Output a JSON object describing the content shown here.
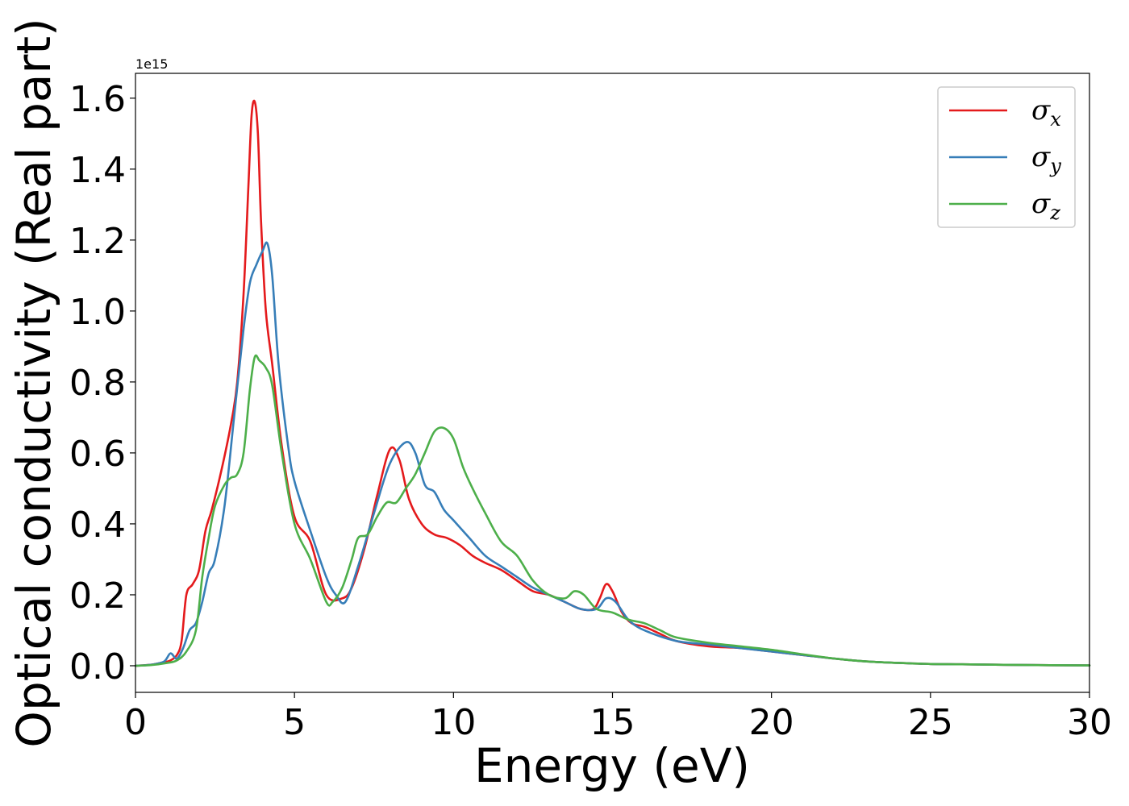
{
  "chart_data": {
    "type": "line",
    "xlabel": "Energy (eV)",
    "ylabel": "Optical conductivity (Real part)",
    "y_offset_text": "1e15",
    "xlim": [
      0,
      30
    ],
    "ylim": [
      -0.075,
      1.67
    ],
    "y_scale_factor": 1000000000000000.0,
    "xticks": [
      0,
      5,
      10,
      15,
      20,
      25,
      30
    ],
    "xtick_labels": [
      "0",
      "5",
      "10",
      "15",
      "20",
      "25",
      "30"
    ],
    "yticks": [
      0.0,
      0.2,
      0.4,
      0.6,
      0.8,
      1.0,
      1.2,
      1.4,
      1.6
    ],
    "ytick_labels": [
      "0.0",
      "0.2",
      "0.4",
      "0.6",
      "0.8",
      "1.0",
      "1.2",
      "1.4",
      "1.6"
    ],
    "grid": false,
    "legend_position": "top-right",
    "series": [
      {
        "name": "σx",
        "label_base": "σ",
        "label_sub": "x",
        "color": "#e41a1c",
        "x": [
          0,
          0.5,
          0.9,
          1.1,
          1.3,
          1.45,
          1.6,
          1.8,
          2.0,
          2.2,
          2.4,
          2.7,
          3.0,
          3.2,
          3.4,
          3.55,
          3.65,
          3.75,
          3.85,
          3.95,
          4.1,
          4.3,
          4.6,
          5.0,
          5.5,
          6.0,
          6.5,
          6.8,
          7.2,
          7.6,
          8.0,
          8.3,
          8.6,
          9.0,
          9.4,
          9.8,
          10.2,
          10.6,
          11.0,
          11.5,
          12.0,
          12.5,
          13.0,
          13.5,
          14.0,
          14.4,
          14.6,
          14.8,
          15.0,
          15.3,
          15.6,
          16.0,
          16.5,
          17.0,
          18.0,
          19.0,
          20.0,
          21.0,
          22.0,
          23.0,
          24.0,
          25.0,
          26.0,
          28.0,
          30.0
        ],
        "y": [
          0.0,
          0.003,
          0.01,
          0.015,
          0.03,
          0.07,
          0.2,
          0.23,
          0.27,
          0.38,
          0.44,
          0.55,
          0.68,
          0.8,
          1.05,
          1.35,
          1.55,
          1.59,
          1.5,
          1.25,
          1.0,
          0.85,
          0.62,
          0.42,
          0.35,
          0.2,
          0.19,
          0.22,
          0.33,
          0.48,
          0.61,
          0.58,
          0.47,
          0.4,
          0.37,
          0.36,
          0.34,
          0.31,
          0.29,
          0.27,
          0.24,
          0.21,
          0.2,
          0.18,
          0.16,
          0.16,
          0.19,
          0.23,
          0.21,
          0.15,
          0.12,
          0.11,
          0.09,
          0.07,
          0.055,
          0.05,
          0.04,
          0.03,
          0.02,
          0.012,
          0.008,
          0.005,
          0.004,
          0.002,
          0.001
        ]
      },
      {
        "name": "σy",
        "label_base": "σ",
        "label_sub": "y",
        "color": "#377eb8",
        "x": [
          0,
          0.5,
          0.9,
          1.1,
          1.3,
          1.5,
          1.7,
          1.9,
          2.1,
          2.3,
          2.5,
          2.8,
          3.1,
          3.4,
          3.6,
          3.8,
          4.0,
          4.15,
          4.3,
          4.5,
          4.8,
          5.0,
          5.5,
          6.0,
          6.3,
          6.6,
          7.0,
          7.5,
          8.0,
          8.5,
          8.8,
          9.1,
          9.4,
          9.7,
          10.0,
          10.5,
          11.0,
          11.5,
          12.0,
          12.5,
          13.0,
          13.5,
          14.0,
          14.5,
          14.8,
          15.1,
          15.5,
          16.0,
          17.0,
          18.0,
          19.0,
          20.0,
          21.0,
          22.0,
          23.0,
          24.0,
          25.0,
          26.0,
          28.0,
          30.0
        ],
        "y": [
          0.0,
          0.003,
          0.012,
          0.035,
          0.02,
          0.05,
          0.1,
          0.12,
          0.18,
          0.26,
          0.3,
          0.45,
          0.7,
          0.95,
          1.08,
          1.13,
          1.17,
          1.19,
          1.1,
          0.85,
          0.62,
          0.52,
          0.38,
          0.25,
          0.2,
          0.18,
          0.28,
          0.43,
          0.57,
          0.63,
          0.6,
          0.51,
          0.49,
          0.44,
          0.41,
          0.36,
          0.31,
          0.28,
          0.25,
          0.22,
          0.2,
          0.18,
          0.16,
          0.16,
          0.19,
          0.18,
          0.13,
          0.1,
          0.07,
          0.06,
          0.05,
          0.04,
          0.03,
          0.02,
          0.012,
          0.008,
          0.005,
          0.004,
          0.002,
          0.001
        ]
      },
      {
        "name": "σz",
        "label_base": "σ",
        "label_sub": "z",
        "color": "#4daf4a",
        "x": [
          0,
          0.5,
          1.0,
          1.3,
          1.6,
          1.9,
          2.1,
          2.3,
          2.5,
          2.8,
          3.0,
          3.2,
          3.4,
          3.6,
          3.75,
          3.9,
          4.1,
          4.3,
          4.6,
          5.0,
          5.5,
          6.0,
          6.2,
          6.5,
          6.8,
          7.0,
          7.3,
          7.6,
          7.9,
          8.2,
          8.5,
          8.8,
          9.1,
          9.4,
          9.7,
          10.0,
          10.3,
          10.6,
          11.0,
          11.5,
          12.0,
          12.5,
          13.0,
          13.5,
          13.8,
          14.1,
          14.5,
          15.0,
          15.5,
          16.0,
          16.5,
          17.0,
          18.0,
          19.0,
          20.0,
          21.0,
          22.0,
          23.0,
          24.0,
          25.0,
          26.0,
          28.0,
          30.0
        ],
        "y": [
          0.0,
          0.002,
          0.008,
          0.015,
          0.04,
          0.1,
          0.25,
          0.36,
          0.45,
          0.51,
          0.53,
          0.54,
          0.6,
          0.78,
          0.87,
          0.86,
          0.84,
          0.79,
          0.6,
          0.4,
          0.3,
          0.18,
          0.18,
          0.22,
          0.3,
          0.36,
          0.37,
          0.42,
          0.46,
          0.46,
          0.5,
          0.54,
          0.6,
          0.66,
          0.67,
          0.64,
          0.56,
          0.5,
          0.43,
          0.35,
          0.31,
          0.24,
          0.2,
          0.19,
          0.21,
          0.2,
          0.16,
          0.15,
          0.13,
          0.12,
          0.1,
          0.08,
          0.065,
          0.055,
          0.045,
          0.032,
          0.02,
          0.012,
          0.008,
          0.005,
          0.004,
          0.002,
          0.001
        ]
      }
    ]
  }
}
